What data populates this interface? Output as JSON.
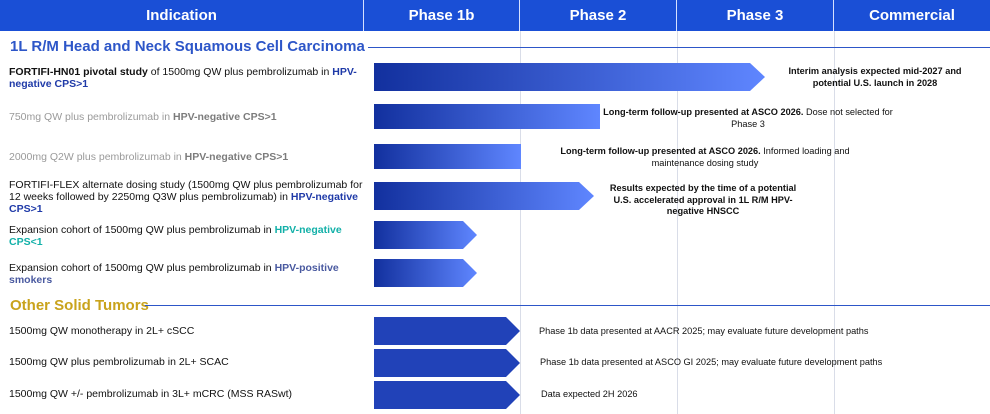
{
  "header": {
    "columns": [
      "Indication",
      "Phase 1b",
      "Phase 2",
      "Phase 3",
      "Commercial"
    ]
  },
  "sections": [
    {
      "title": "1L R/M Head and Neck Squamous Cell Carcinoma",
      "color": "#2d56c8"
    },
    {
      "title": "Other Solid Tumors",
      "color": "#c9a31c"
    }
  ],
  "rows": [
    {
      "label_parts": [
        "FORTIFI-HN01 pivotal study",
        " of 1500mg QW plus pembrolizumab in ",
        "HPV-negative CPS>1"
      ],
      "stage": "Phase 3",
      "note_bold": "Interim analysis expected mid-2027 and potential U.S. launch in 2028",
      "note_rest": ""
    },
    {
      "label_parts": [
        "750mg QW plus pembrolizumab in ",
        "HPV-negative CPS>1"
      ],
      "stage": "Phase 2",
      "note_bold": "Long-term follow-up presented at ASCO 2026.",
      "note_rest": " Dose not selected for Phase 3"
    },
    {
      "label_parts": [
        "2000mg Q2W plus pembrolizumab in ",
        "HPV-negative CPS>1"
      ],
      "stage": "Phase 1b",
      "note_bold": "Long-term follow-up presented at ASCO 2026.",
      "note_rest": " Informed loading and maintenance dosing study"
    },
    {
      "label_parts": [
        "FORTIFI-FLEX alternate dosing study (1500mg QW plus pembrolizumab for 12 weeks followed by 2250mg Q3W plus pembrolizumab) in ",
        "HPV-negative CPS>1"
      ],
      "stage": "Phase 2",
      "note_bold": "Results expected by the time of a potential U.S. accelerated approval in 1L R/M HPV-negative HNSCC",
      "note_rest": ""
    },
    {
      "label_parts": [
        "Expansion cohort of 1500mg QW plus pembrolizumab in ",
        "HPV-negative CPS<1"
      ],
      "stage": "Phase 1b"
    },
    {
      "label_parts": [
        "Expansion cohort of 1500mg QW plus pembrolizumab in ",
        "HPV-positive smokers"
      ],
      "stage": "Phase 1b"
    },
    {
      "label": "1500mg QW monotherapy in 2L+ cSCC",
      "stage": "Phase 1b",
      "note": "Phase 1b data presented at AACR 2025; may evaluate future development paths"
    },
    {
      "label": "1500mg QW plus pembrolizumab in 2L+ SCAC",
      "stage": "Phase 1b",
      "note": "Phase 1b data presented at ASCO GI 2025; may evaluate future development paths"
    },
    {
      "label": "1500mg QW +/- pembrolizumab in 3L+ mCRC (MSS RASwt)",
      "stage": "Phase 1b",
      "note": "Data expected 2H 2026"
    }
  ],
  "colors": {
    "header_bg": "#1a4fd6",
    "bar_dark": "#12309e",
    "bar_light": "#5f86ff",
    "bar_solid": "#2142b8",
    "teal": "#12b0a8"
  }
}
